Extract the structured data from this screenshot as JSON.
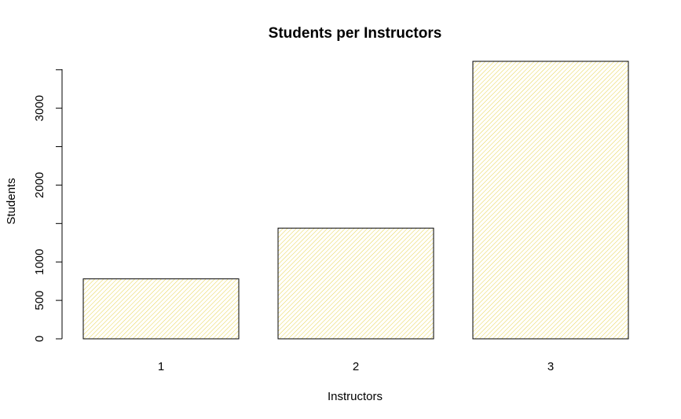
{
  "chart_data": {
    "type": "bar",
    "title": "Students per Instructors",
    "xlabel": "Instructors",
    "ylabel": "Students",
    "categories": [
      "1",
      "2",
      "3"
    ],
    "values": [
      780,
      1440,
      3610
    ],
    "ylim": [
      0,
      3610
    ],
    "yticks": [
      0,
      500,
      1000,
      2000,
      3000
    ],
    "ytick_labels": [
      "0",
      "500",
      "1000",
      "2000",
      "3000"
    ],
    "grid": false,
    "legend": "none",
    "bar_fill": "#ffffff",
    "hatch_color": "#e8d44d",
    "bar_border": "#000000"
  }
}
